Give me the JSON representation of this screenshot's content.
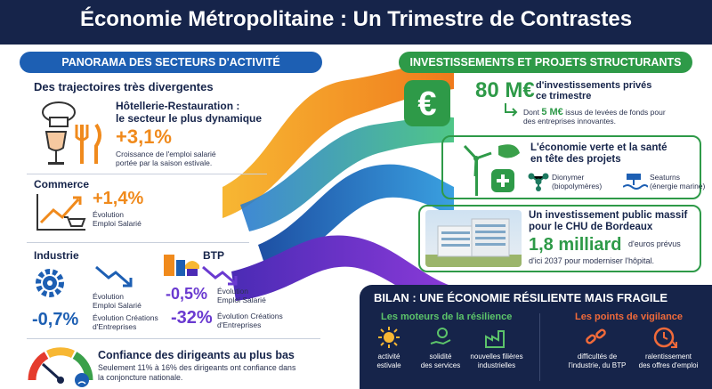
{
  "title": "Économie Métropolitaine : Un Trimestre de Contrastes",
  "left": {
    "pill": "PANORAMA DES SECTEURS D'ACTIVITÉ",
    "heading": "Des trajectoires très divergentes",
    "hotellerie": {
      "title_line1": "Hôtellerie-Restauration :",
      "title_line2": "le secteur le plus dynamique",
      "value": "+3,1%",
      "desc_line1": "Croissance de l'emploi salarié",
      "desc_line2": "portée par la saison estivale."
    },
    "commerce": {
      "title": "Commerce",
      "value": "+1,4%",
      "desc_line1": "Évolution",
      "desc_line2": "Emploi Salarié"
    },
    "industrie": {
      "title": "Industrie",
      "emploi_line1": "Évolution",
      "emploi_line2": "Emploi Salarié",
      "creations_value": "-0,7%",
      "creations_line1": "Évolution Créations",
      "creations_line2": "d'Entreprises"
    },
    "btp": {
      "title": "BTP",
      "emploi_value": "-0,5%",
      "emploi_line1": "Évolution",
      "emploi_line2": "Emploi Salarié",
      "creations_value": "-32%",
      "creations_line1": "Évolution Créations",
      "creations_line2": "d'Entreprises"
    },
    "confiance": {
      "title": "Confiance des dirigeants au plus bas",
      "desc_line1": "Seulement 11% à 16% des dirigeants ont confiance dans",
      "desc_line2": "la conjoncture nationale."
    }
  },
  "right": {
    "pill": "INVESTISSEMENTS ET PROJETS STRUCTURANTS",
    "invest": {
      "amount": "80 M€",
      "text_line1": "d'investissements privés",
      "text_line2": "ce trimestre",
      "dont_prefix": "Dont",
      "dont_amount": "5 M€",
      "dont_text1": "issus de levées de fonds pour",
      "dont_text2": "des entreprises innovantes."
    },
    "verte": {
      "title_line1": "L'économie verte et la santé",
      "title_line2": "en tête des projets",
      "dionymer_name": "Dionymer",
      "dionymer_desc": "(biopolymères)",
      "seaturns_name": "Seaturns",
      "seaturns_desc": "(énergie marine)"
    },
    "chu": {
      "title_line1": "Un investissement public massif",
      "title_line2": "pour le CHU de Bordeaux",
      "amount": "1,8 milliard",
      "text_line1": "d'euros prévus",
      "text_line2": "d'ici 2037 pour moderniser l'hôpital."
    }
  },
  "bilan": {
    "title": "BILAN : UNE ÉCONOMIE RÉSILIENTE MAIS FRAGILE",
    "moteurs_title": "Les moteurs de la résilience",
    "vigilance_title": "Les points de vigilance",
    "moteurs": [
      {
        "l1": "activité",
        "l2": "estivale"
      },
      {
        "l1": "solidité",
        "l2": "des services"
      },
      {
        "l1": "nouvelles filières",
        "l2": "industrielles"
      }
    ],
    "vigilance": [
      {
        "l1": "difficultés de",
        "l2": "l'industrie, du BTP"
      },
      {
        "l1": "ralentissement",
        "l2": "des offres d'emploi"
      }
    ]
  },
  "colors": {
    "navy": "#16244a",
    "blue": "#1d5fb3",
    "green": "#2e9a48",
    "orange": "#f08a1c",
    "purple": "#6a3ad0"
  }
}
